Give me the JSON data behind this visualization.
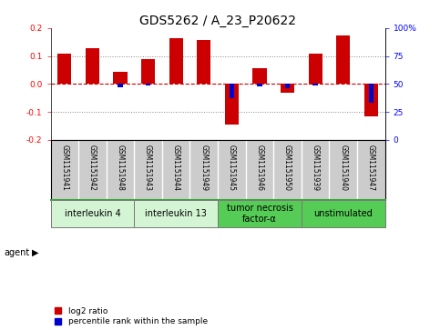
{
  "title": "GDS5262 / A_23_P20622",
  "samples": [
    "GSM1151941",
    "GSM1151942",
    "GSM1151948",
    "GSM1151943",
    "GSM1151944",
    "GSM1151949",
    "GSM1151945",
    "GSM1151946",
    "GSM1151950",
    "GSM1151939",
    "GSM1151940",
    "GSM1151947"
  ],
  "log2_ratio": [
    0.108,
    0.127,
    0.045,
    0.088,
    0.165,
    0.158,
    -0.145,
    0.058,
    -0.03,
    0.11,
    0.172,
    -0.115
  ],
  "percentile_rank": [
    50,
    50,
    47,
    49,
    50,
    50,
    37,
    48,
    46,
    49,
    50,
    33
  ],
  "agents": [
    {
      "label": "interleukin 4",
      "start": 0,
      "end": 3,
      "color": "#d4f5d4"
    },
    {
      "label": "interleukin 13",
      "start": 3,
      "end": 6,
      "color": "#d4f5d4"
    },
    {
      "label": "tumor necrosis\nfactor-α",
      "start": 6,
      "end": 9,
      "color": "#55cc55"
    },
    {
      "label": "unstimulated",
      "start": 9,
      "end": 12,
      "color": "#55cc55"
    }
  ],
  "ylim": [
    -0.2,
    0.2
  ],
  "yticks_left": [
    -0.2,
    -0.1,
    0.0,
    0.1,
    0.2
  ],
  "yticks_right": [
    0,
    25,
    50,
    75,
    100
  ],
  "bar_color_red": "#cc0000",
  "bar_color_blue": "#0000cc",
  "bg_color": "#ffffff",
  "plot_bg": "#ffffff",
  "grid_color": "#888888",
  "zero_line_color": "#cc0000",
  "sample_bg": "#cccccc",
  "title_fontsize": 10,
  "tick_fontsize": 6.5,
  "sample_fontsize": 5.5,
  "agent_fontsize": 7,
  "legend_fontsize": 6.5
}
